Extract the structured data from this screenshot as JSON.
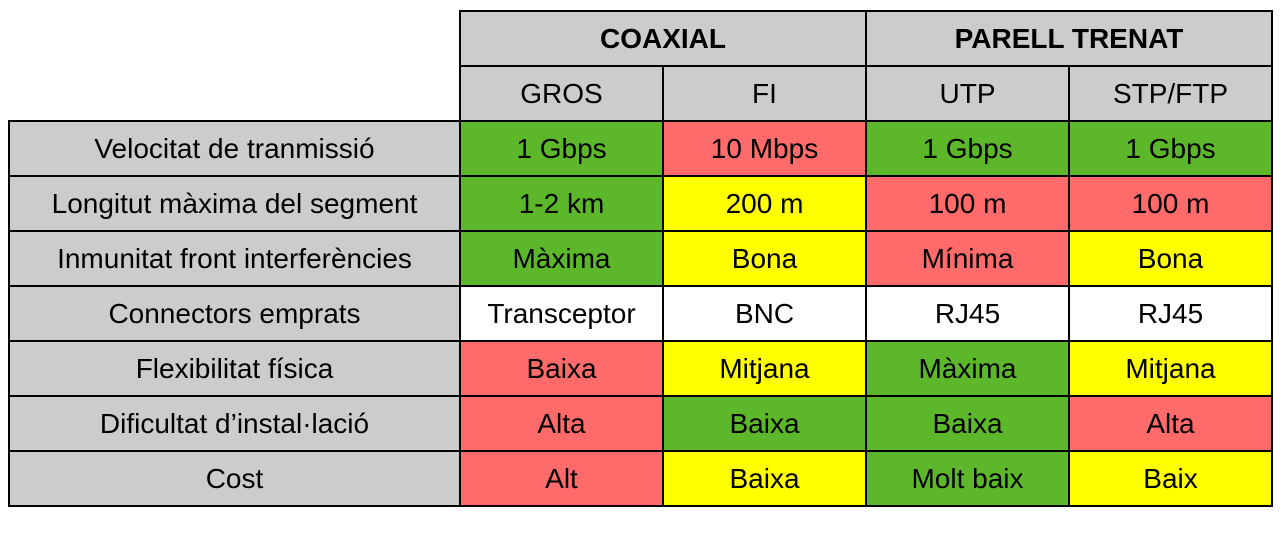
{
  "table": {
    "groups": [
      {
        "label": "COAXIAL"
      },
      {
        "label": "PARELL TRENAT"
      }
    ],
    "subheaders": [
      "GROS",
      "FI",
      "UTP",
      "STP/FTP"
    ],
    "rows": [
      {
        "label": "Velocitat de tranmissió",
        "cells": [
          {
            "text": "1 Gbps",
            "color": "#5cb82a"
          },
          {
            "text": "10 Mbps",
            "color": "#ff6a6a"
          },
          {
            "text": "1 Gbps",
            "color": "#5cb82a"
          },
          {
            "text": "1 Gbps",
            "color": "#5cb82a"
          }
        ]
      },
      {
        "label": "Longitut màxima del segment",
        "cells": [
          {
            "text": "1-2 km",
            "color": "#5cb82a"
          },
          {
            "text": "200 m",
            "color": "#ffff00"
          },
          {
            "text": "100 m",
            "color": "#ff6a6a"
          },
          {
            "text": "100 m",
            "color": "#ff6a6a"
          }
        ]
      },
      {
        "label": "Inmunitat front interferències",
        "cells": [
          {
            "text": "Màxima",
            "color": "#5cb82a"
          },
          {
            "text": "Bona",
            "color": "#ffff00"
          },
          {
            "text": "Mínima",
            "color": "#ff6a6a"
          },
          {
            "text": "Bona",
            "color": "#ffff00"
          }
        ]
      },
      {
        "label": "Connectors emprats",
        "cells": [
          {
            "text": "Transceptor",
            "color": "#ffffff"
          },
          {
            "text": "BNC",
            "color": "#ffffff"
          },
          {
            "text": "RJ45",
            "color": "#ffffff"
          },
          {
            "text": "RJ45",
            "color": "#ffffff"
          }
        ]
      },
      {
        "label": "Flexibilitat física",
        "cells": [
          {
            "text": "Baixa",
            "color": "#ff6a6a"
          },
          {
            "text": "Mitjana",
            "color": "#ffff00"
          },
          {
            "text": "Màxima",
            "color": "#5cb82a"
          },
          {
            "text": "Mitjana",
            "color": "#ffff00"
          }
        ]
      },
      {
        "label": "Dificultat d’instal·lació",
        "cells": [
          {
            "text": "Alta",
            "color": "#ff6a6a"
          },
          {
            "text": "Baixa",
            "color": "#5cb82a"
          },
          {
            "text": "Baixa",
            "color": "#5cb82a"
          },
          {
            "text": "Alta",
            "color": "#ff6a6a"
          }
        ]
      },
      {
        "label": "Cost",
        "cells": [
          {
            "text": "Alt",
            "color": "#ff6a6a"
          },
          {
            "text": "Baixa",
            "color": "#ffff00"
          },
          {
            "text": "Molt baix",
            "color": "#5cb82a"
          },
          {
            "text": "Baix",
            "color": "#ffff00"
          }
        ]
      }
    ]
  }
}
